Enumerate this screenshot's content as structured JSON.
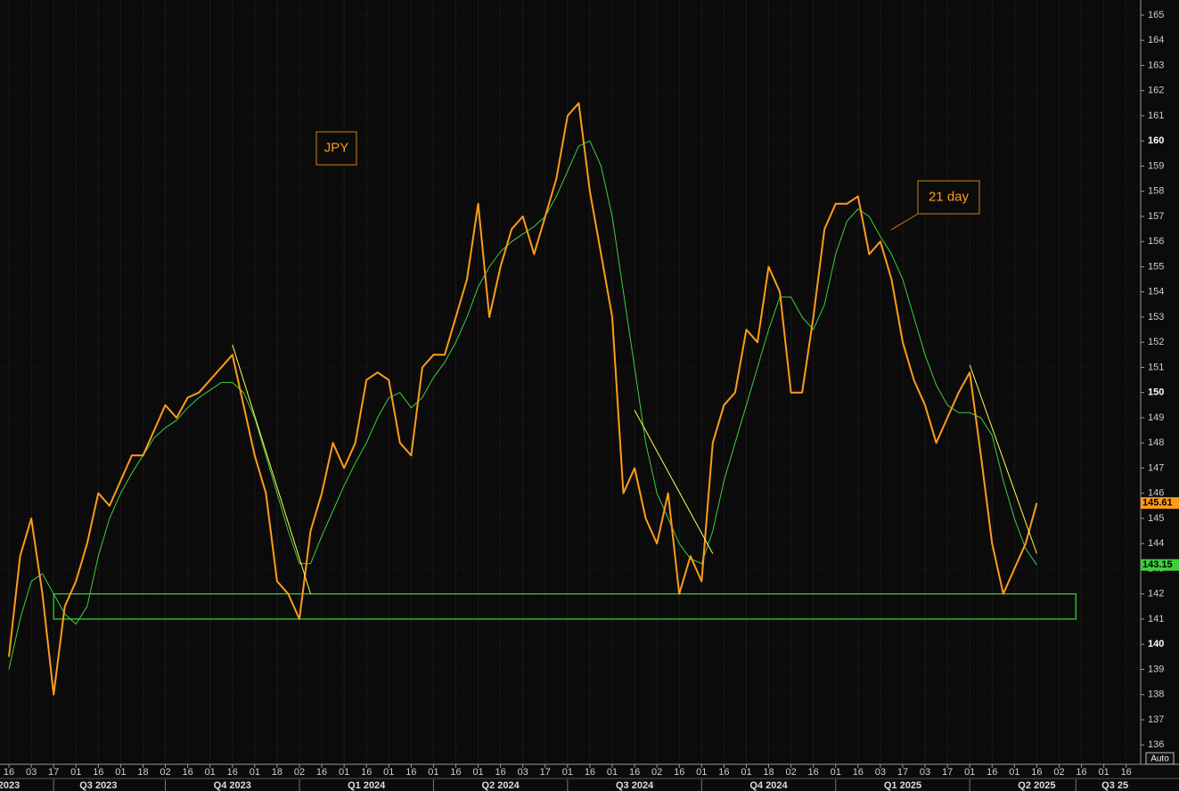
{
  "chart_data": {
    "type": "line",
    "annotations": [
      "JPY",
      "21 day"
    ],
    "mode_label": "Auto",
    "categories": [
      "16",
      null,
      "03",
      null,
      "17",
      null,
      "01",
      null,
      "16",
      null,
      "01",
      null,
      "18",
      null,
      "02",
      null,
      "16",
      null,
      "01",
      null,
      "16",
      null,
      "01",
      null,
      "18",
      null,
      "02",
      null,
      "16",
      null,
      "01",
      null,
      "16",
      null,
      "01",
      null,
      "16",
      null,
      "01",
      null,
      "16",
      null,
      "01",
      null,
      "16",
      null,
      "03",
      null,
      "17",
      null,
      "01",
      null,
      "16",
      null,
      "01",
      null,
      "16",
      null,
      "02",
      null,
      "16",
      null,
      "01",
      null,
      "16",
      null,
      "01",
      null,
      "18",
      null,
      "02",
      null,
      "16",
      null,
      "01",
      null,
      "16",
      null,
      "03",
      null,
      "17",
      null,
      "03",
      null,
      "17",
      null,
      "01",
      null,
      "16",
      null,
      "01",
      null,
      "16",
      null,
      "02",
      null,
      "16",
      null,
      "01",
      null,
      "16"
    ],
    "period_categories": [
      "2023",
      null,
      null,
      null,
      null,
      null,
      null,
      null,
      "Q3 2023",
      null,
      null,
      null,
      null,
      null,
      null,
      null,
      null,
      null,
      null,
      null,
      "Q4 2023",
      null,
      null,
      null,
      null,
      null,
      null,
      null,
      null,
      null,
      null,
      null,
      "Q1 2024",
      null,
      null,
      null,
      null,
      null,
      null,
      null,
      null,
      null,
      null,
      null,
      "Q2 2024",
      null,
      null,
      null,
      null,
      null,
      null,
      null,
      null,
      null,
      null,
      null,
      "Q3 2024",
      null,
      null,
      null,
      null,
      null,
      null,
      null,
      null,
      null,
      null,
      null,
      "Q4 2024",
      null,
      null,
      null,
      null,
      null,
      null,
      null,
      null,
      null,
      null,
      null,
      "Q1 2025",
      null,
      null,
      null,
      null,
      null,
      null,
      null,
      null,
      null,
      null,
      null,
      "Q2 2025",
      null,
      null,
      null,
      null,
      null,
      null,
      "Q3 25",
      null
    ],
    "series": [
      {
        "name": "JPY",
        "color": "#ff9c1a",
        "values": [
          139.5,
          143.5,
          145,
          142,
          138,
          141.5,
          142.5,
          144,
          146,
          145.5,
          146.5,
          147.5,
          147.5,
          148.5,
          149.5,
          149,
          149.8,
          150,
          150.5,
          151,
          151.5,
          149.5,
          147.5,
          146,
          142.5,
          142,
          141,
          144.5,
          146,
          148,
          147,
          148,
          150.5,
          150.8,
          150.5,
          148,
          147.5,
          151,
          151.5,
          151.5,
          153,
          154.5,
          157.5,
          153,
          155,
          156.5,
          157,
          155.5,
          157,
          158.5,
          161,
          161.5,
          158,
          155.5,
          153,
          146,
          147,
          145,
          144,
          146,
          142,
          143.5,
          142.5,
          148,
          149.5,
          150,
          152.5,
          152,
          155,
          154,
          150,
          150,
          153,
          156.5,
          157.5,
          157.5,
          157.8,
          155.5,
          156,
          154.5,
          152,
          150.5,
          149.5,
          148,
          149,
          150,
          150.8,
          147.5,
          144,
          142,
          143,
          144,
          145.61,
          null,
          null,
          null,
          null,
          null,
          null,
          null,
          null
        ]
      },
      {
        "name": "21 day",
        "color": "#3ecf3e",
        "values": [
          139,
          141,
          142.5,
          142.8,
          142,
          141.2,
          140.8,
          141.5,
          143.5,
          145,
          146,
          146.8,
          147.5,
          148.2,
          148.6,
          148.9,
          149.4,
          149.8,
          150.1,
          150.4,
          150.4,
          150,
          149,
          147.5,
          146,
          144.5,
          143.2,
          143.2,
          144.3,
          145.3,
          146.3,
          147.2,
          148,
          149,
          149.8,
          150,
          149.4,
          149.8,
          150.6,
          151.2,
          152,
          153,
          154.2,
          155,
          155.6,
          156,
          156.3,
          156.6,
          157,
          157.8,
          158.8,
          159.8,
          160,
          159,
          157,
          154,
          151,
          148,
          146,
          145,
          144,
          143.4,
          143.2,
          144.5,
          146.5,
          148,
          149.5,
          151,
          152.5,
          153.8,
          153.8,
          153,
          152.5,
          153.5,
          155.5,
          156.8,
          157.3,
          157,
          156.2,
          155.5,
          154.5,
          153,
          151.5,
          150.3,
          149.5,
          149.2,
          149.2,
          149,
          148.3,
          146.5,
          145,
          143.8,
          143.15,
          null,
          null,
          null,
          null,
          null,
          null,
          null,
          null
        ]
      }
    ],
    "trend_lines": [
      {
        "color": "#ffff55",
        "x": [
          20,
          27
        ],
        "y": [
          151.9,
          142.0
        ]
      },
      {
        "color": "#ffff55",
        "x": [
          56,
          63
        ],
        "y": [
          149.3,
          143.6
        ]
      },
      {
        "color": "#ffff55",
        "x": [
          86,
          92
        ],
        "y": [
          151.1,
          143.6
        ]
      }
    ],
    "support_zone": {
      "color": "#33dd33",
      "x": [
        4,
        95.5
      ],
      "y": [
        141,
        142
      ]
    },
    "xlim": [
      -0.8,
      101.3
    ],
    "ylim": [
      135.3,
      165.6
    ],
    "yticks": [
      136,
      137,
      138,
      139,
      140,
      141,
      142,
      143,
      144,
      145,
      146,
      147,
      148,
      149,
      150,
      151,
      152,
      153,
      154,
      155,
      156,
      157,
      158,
      159,
      160,
      161,
      162,
      163,
      164,
      165
    ],
    "grid": true
  }
}
